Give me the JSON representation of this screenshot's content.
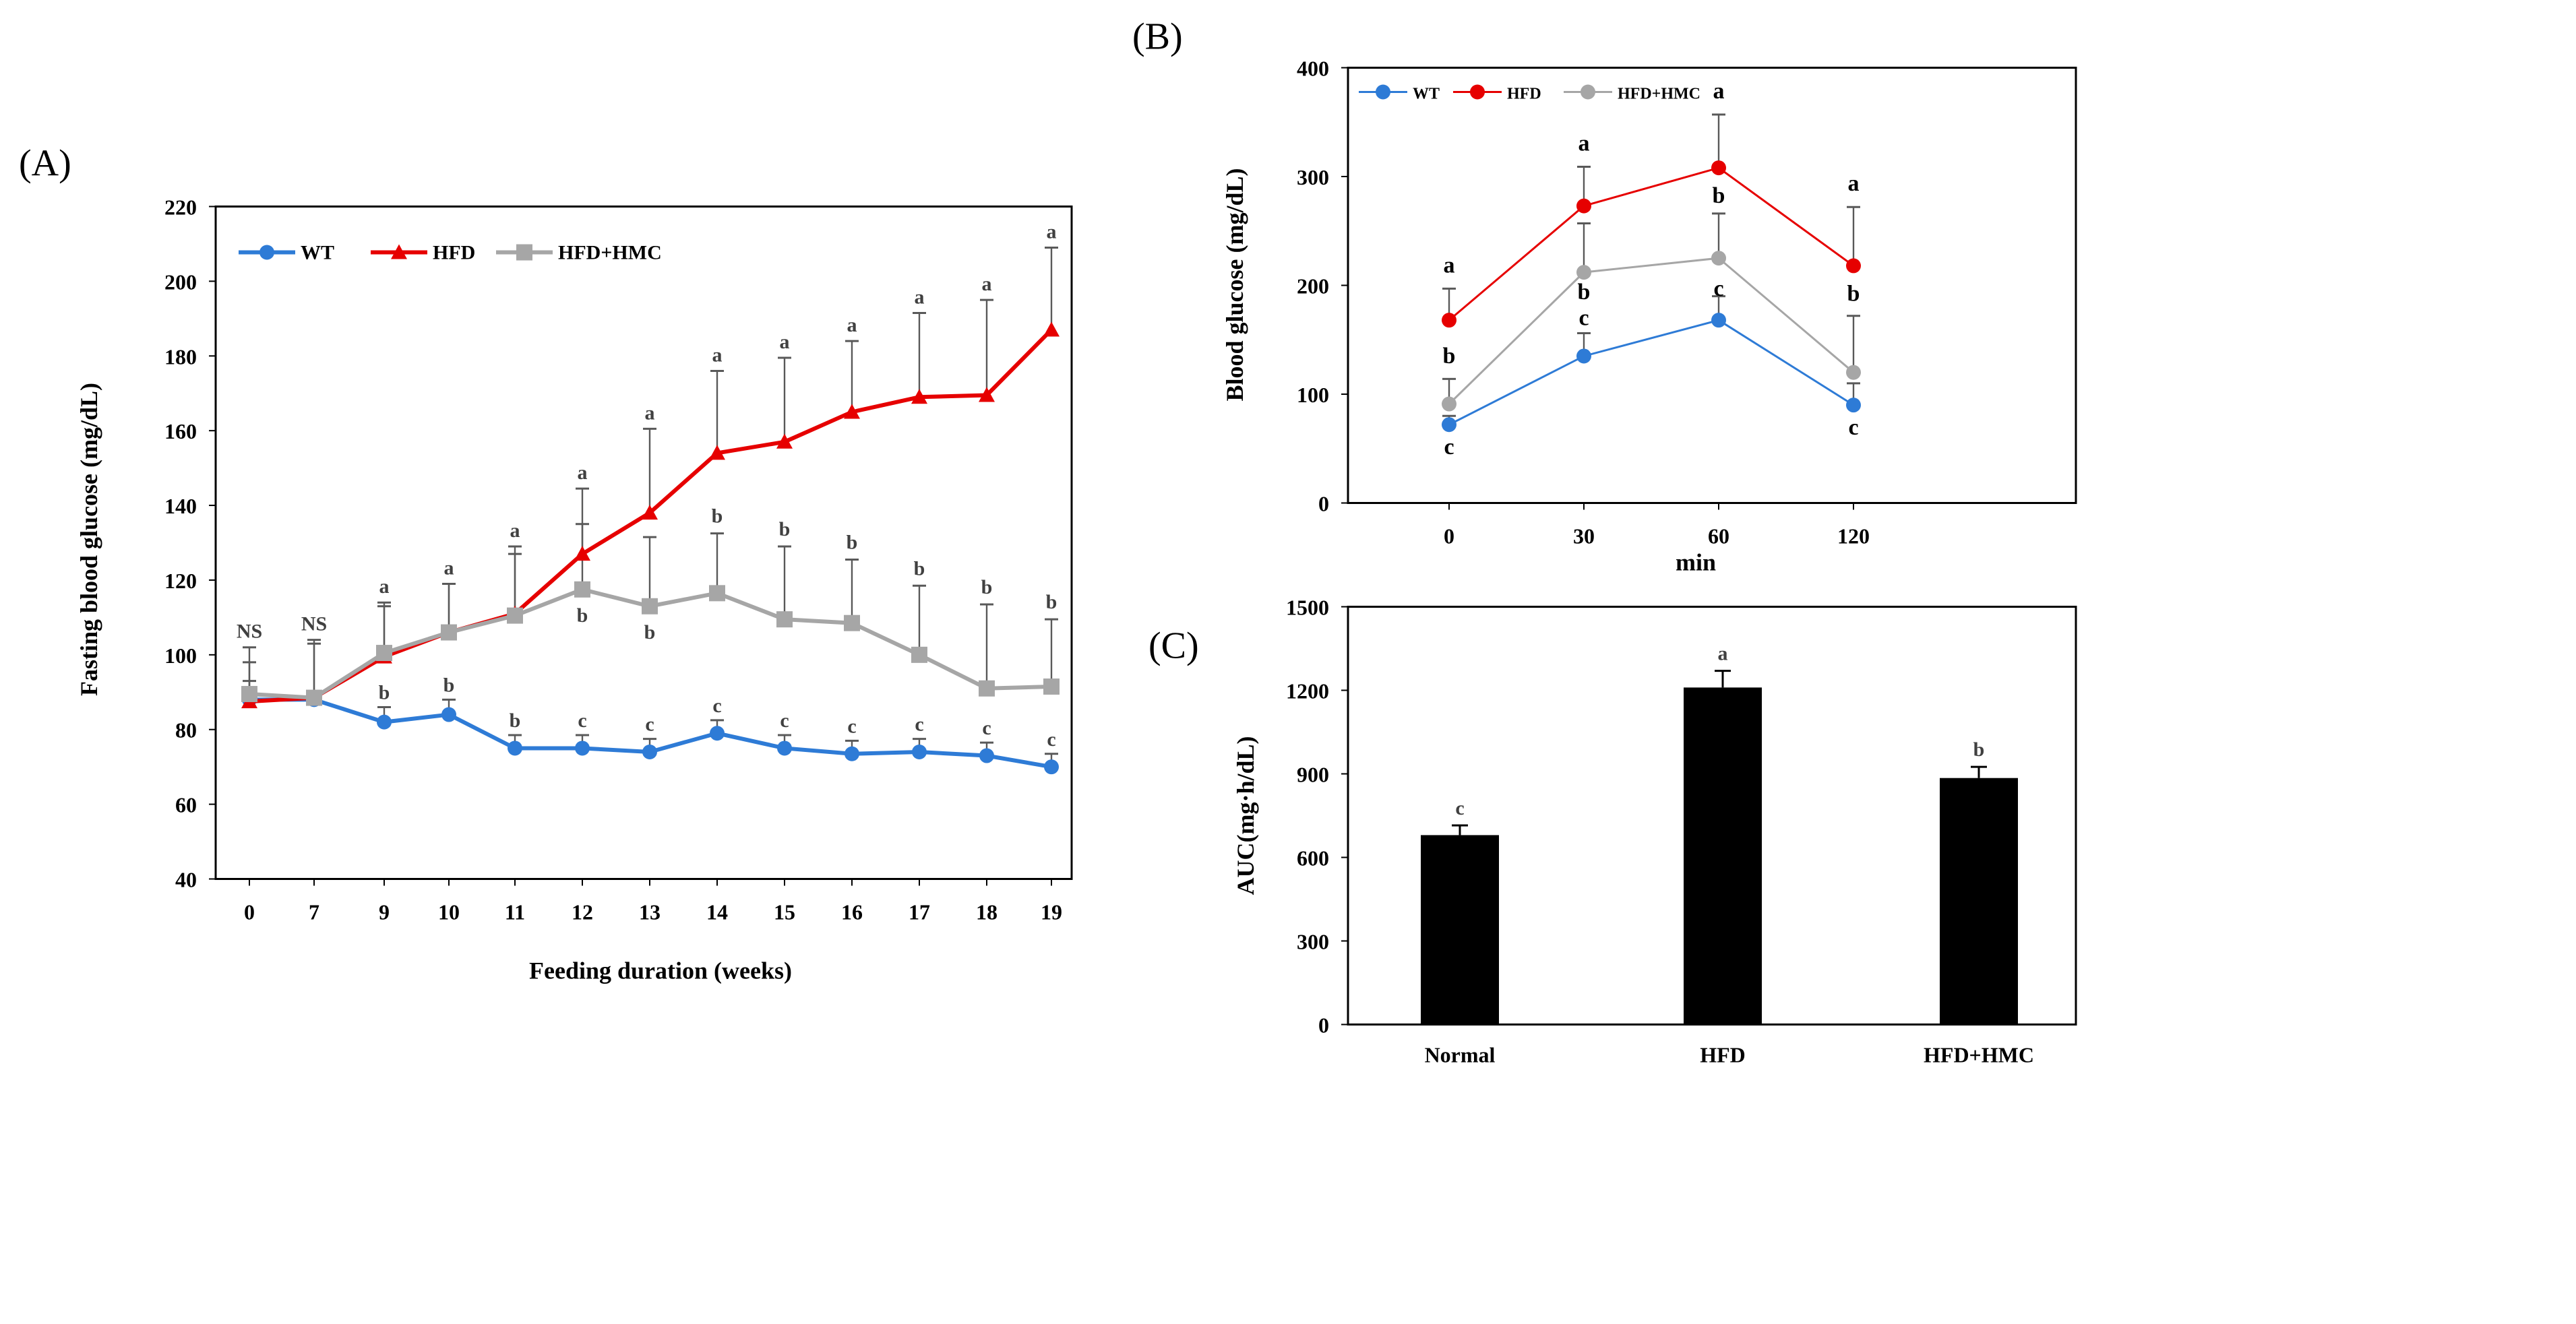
{
  "colors": {
    "WT": "#2e7bd6",
    "HFD": "#e60000",
    "HMC": "#a6a6a6",
    "bar": "#000000"
  },
  "chart_data": [
    {
      "panel": "(A)",
      "type": "line",
      "xlabel": "Feeding duration (weeks)",
      "ylabel": "Fasting blood glucose (mg/dL)",
      "ylim": [
        40,
        220
      ],
      "yticks": [
        40,
        60,
        80,
        100,
        120,
        140,
        160,
        180,
        200,
        220
      ],
      "x": [
        "0",
        "7",
        "9",
        "10",
        "11",
        "12",
        "13",
        "14",
        "15",
        "16",
        "17",
        "18",
        "19"
      ],
      "legend": "top-left",
      "series": [
        {
          "name": "WT",
          "marker": "circle",
          "values": [
            88,
            88,
            82,
            84,
            75,
            75,
            74,
            79,
            75,
            73.5,
            74,
            73,
            70
          ],
          "err_upper": [
            93,
            90,
            86,
            88,
            78.5,
            78.5,
            77.5,
            82.5,
            78.5,
            77,
            77.5,
            76.5,
            73.5
          ],
          "letters": [
            "",
            "",
            "b",
            "b",
            "b",
            "c",
            "c",
            "c",
            "c",
            "c",
            "c",
            "c",
            "c"
          ]
        },
        {
          "name": "HFD",
          "marker": "triangle",
          "values": [
            87.5,
            88.5,
            99.5,
            106,
            111,
            127,
            138,
            154,
            157,
            165,
            169,
            169.5,
            187
          ],
          "err_upper": [
            98,
            103,
            113,
            119,
            127,
            144.5,
            160.5,
            176,
            179.5,
            184,
            191.5,
            195,
            209
          ],
          "letters": [
            "NS",
            "NS",
            "a",
            "a",
            "a",
            "a",
            "a",
            "a",
            "a",
            "a",
            "a",
            "a",
            "a"
          ]
        },
        {
          "name": "HFD+HMC",
          "marker": "square",
          "values": [
            89.5,
            88.5,
            100.5,
            106,
            110.5,
            117.5,
            113,
            116.5,
            109.5,
            108.5,
            100,
            91,
            91.5
          ],
          "err_upper": [
            102,
            104,
            114,
            119,
            129,
            135,
            131.5,
            132.5,
            129,
            125.5,
            118.5,
            113.5,
            109.5
          ],
          "letters": [
            "",
            "",
            "",
            "",
            "",
            "b",
            "b",
            "b",
            "b",
            "b",
            "b",
            "b",
            "b"
          ]
        }
      ]
    },
    {
      "panel": "(B)",
      "type": "line",
      "xlabel": "min",
      "ylabel": "Blood glucose (mg/dL)",
      "ylim": [
        0,
        400
      ],
      "yticks": [
        0,
        100,
        200,
        300,
        400
      ],
      "x": [
        "0",
        "30",
        "60",
        "120"
      ],
      "legend": "top-left",
      "series": [
        {
          "name": "WT",
          "marker": "circle",
          "values": [
            72,
            135,
            168,
            90
          ],
          "err_upper": [
            80,
            156,
            190,
            110
          ],
          "letters": [
            "c",
            "c",
            "c",
            "c"
          ]
        },
        {
          "name": "HFD",
          "marker": "circle",
          "values": [
            168,
            273,
            308,
            218
          ],
          "err_upper": [
            197,
            309,
            357,
            272
          ],
          "letters": [
            "a",
            "a",
            "a",
            "a"
          ]
        },
        {
          "name": "HFD+HMC",
          "marker": "circle",
          "values": [
            91,
            212,
            225,
            120
          ],
          "err_upper": [
            114,
            257,
            266,
            172
          ],
          "letters": [
            "b",
            "b",
            "b",
            "b"
          ]
        }
      ]
    },
    {
      "panel": "(C)",
      "type": "bar",
      "xlabel": "",
      "ylabel": "AUC(mg·h/dL)",
      "ylim": [
        0,
        1500
      ],
      "yticks": [
        0,
        300,
        600,
        900,
        1200,
        1500
      ],
      "categories": [
        "Normal",
        "HFD",
        "HFD+HMC"
      ],
      "values": [
        680,
        1210,
        885
      ],
      "err_upper": [
        715,
        1270,
        925
      ],
      "letters": [
        "c",
        "a",
        "b"
      ]
    }
  ]
}
